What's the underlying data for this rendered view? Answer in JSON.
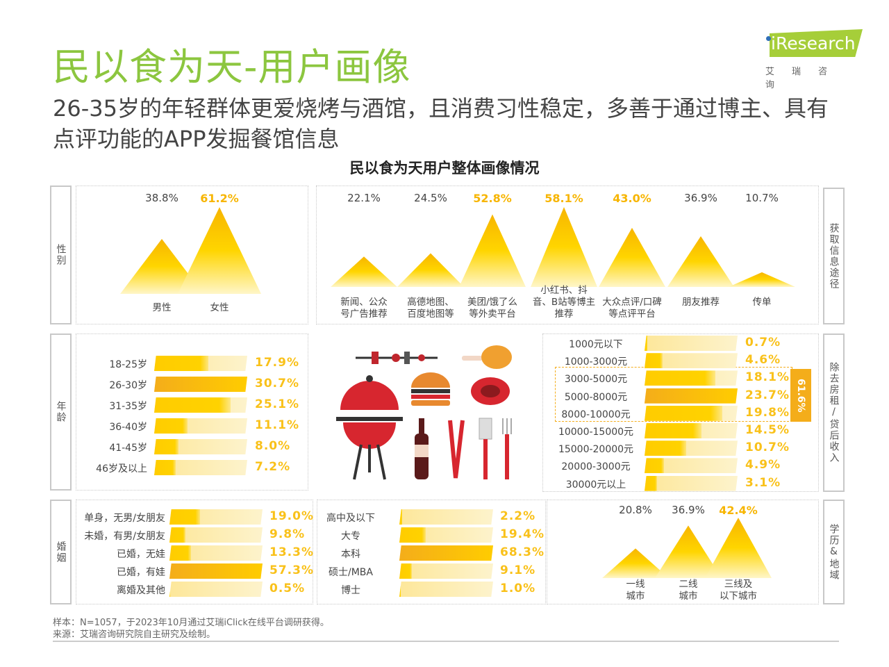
{
  "header": {
    "title": "民以食为天-用户画像",
    "subtitle": "26-35岁的年轻群体更爱烧烤与酒馆，且消费习性稳定，多善于通过博主、具有点评功能的APP发掘餐馆信息",
    "logo_text": "iResearch",
    "logo_cn": "艾瑞咨询"
  },
  "chart_title": "民以食为天用户整体画像情况",
  "colors": {
    "title_green": "#8cc63f",
    "accent_yellow": "#ffd200",
    "highlight_orange": "#f4ad1a",
    "value_text": "#f9c11a"
  },
  "side_labels": {
    "gender": "性别",
    "channel": "获取信息途径",
    "age": "年龄",
    "income": "除去房租/贷后收入",
    "marriage": "婚姻",
    "edu_region": "学历&地域"
  },
  "chart_data": [
    {
      "type": "area",
      "name_key": "gender",
      "categories": [
        "男性",
        "女性"
      ],
      "values": [
        38.8,
        61.2
      ],
      "labels": [
        "38.8%",
        "61.2%"
      ]
    },
    {
      "type": "area",
      "name_key": "channel",
      "categories": [
        "新闻、公众号广告推荐",
        "高德地图、百度地图等",
        "美团/饿了么等外卖平台",
        "小红书、抖音、B站等博主推荐",
        "大众点评/口碑等点评平台",
        "朋友推荐",
        "传单"
      ],
      "values": [
        22.1,
        24.5,
        52.8,
        58.1,
        43.0,
        36.9,
        10.7
      ],
      "labels": [
        "22.1%",
        "24.5%",
        "52.8%",
        "58.1%",
        "43.0%",
        "36.9%",
        "10.7%"
      ]
    },
    {
      "type": "bar",
      "name_key": "age",
      "categories": [
        "18-25岁",
        "26-30岁",
        "31-35岁",
        "36-40岁",
        "41-45岁",
        "46岁及以上"
      ],
      "values": [
        17.9,
        30.7,
        25.1,
        11.1,
        8.0,
        7.2
      ],
      "labels": [
        "17.9%",
        "30.7%",
        "25.1%",
        "11.1%",
        "8.0%",
        "7.2%"
      ]
    },
    {
      "type": "bar",
      "name_key": "income",
      "categories": [
        "1000元以下",
        "1000-3000元",
        "3000-5000元",
        "5000-8000元",
        "8000-10000元",
        "10000-15000元",
        "15000-20000元",
        "20000-3000元",
        "30000元以上"
      ],
      "values": [
        0.7,
        4.6,
        18.1,
        23.7,
        19.8,
        14.5,
        10.7,
        4.9,
        3.1
      ],
      "labels": [
        "0.7%",
        "4.6%",
        "18.1%",
        "23.7%",
        "19.8%",
        "14.5%",
        "10.7%",
        "4.9%",
        "3.1%"
      ],
      "highlight_group_total": "61.6%"
    },
    {
      "type": "bar",
      "name_key": "marriage",
      "categories": [
        "单身，无男/女朋友",
        "未婚，有男/女朋友",
        "已婚，无娃",
        "已婚，有娃",
        "离婚及其他"
      ],
      "values": [
        19.0,
        9.8,
        13.3,
        57.3,
        0.5
      ],
      "labels": [
        "19.0%",
        "9.8%",
        "13.3%",
        "57.3%",
        "0.5%"
      ]
    },
    {
      "type": "bar",
      "name_key": "education",
      "categories": [
        "高中及以下",
        "大专",
        "本科",
        "硕士/MBA",
        "博士"
      ],
      "values": [
        2.2,
        19.4,
        68.3,
        9.1,
        1.0
      ],
      "labels": [
        "2.2%",
        "19.4%",
        "68.3%",
        "9.1%",
        "1.0%"
      ]
    },
    {
      "type": "area",
      "name_key": "region",
      "categories": [
        "一线城市",
        "二线城市",
        "三线及以下城市"
      ],
      "values": [
        20.8,
        36.9,
        42.4
      ],
      "labels": [
        "20.8%",
        "36.9%",
        "42.4%"
      ]
    }
  ],
  "mountain_label_lines": {
    "channel": [
      [
        "新闻、公众",
        "号广告推荐"
      ],
      [
        "高德地图、",
        "百度地图等"
      ],
      [
        "美团/饿了么",
        "等外卖平台"
      ],
      [
        "小红书、抖",
        "音、B站等博主",
        "推荐"
      ],
      [
        "大众点评/口碑",
        "等点评平台"
      ],
      [
        "朋友推荐"
      ],
      [
        "传单"
      ]
    ],
    "region": [
      [
        "一线",
        "城市"
      ],
      [
        "二线",
        "城市"
      ],
      [
        "三线及",
        "以下城市"
      ]
    ],
    "gender": [
      [
        "男性"
      ],
      [
        "女性"
      ]
    ]
  },
  "footer": {
    "sample": "样本：N=1057，于2023年10月通过艾瑞iClick在线平台调研获得。",
    "source": "来源：艾瑞咨询研究院自主研究及绘制。"
  }
}
